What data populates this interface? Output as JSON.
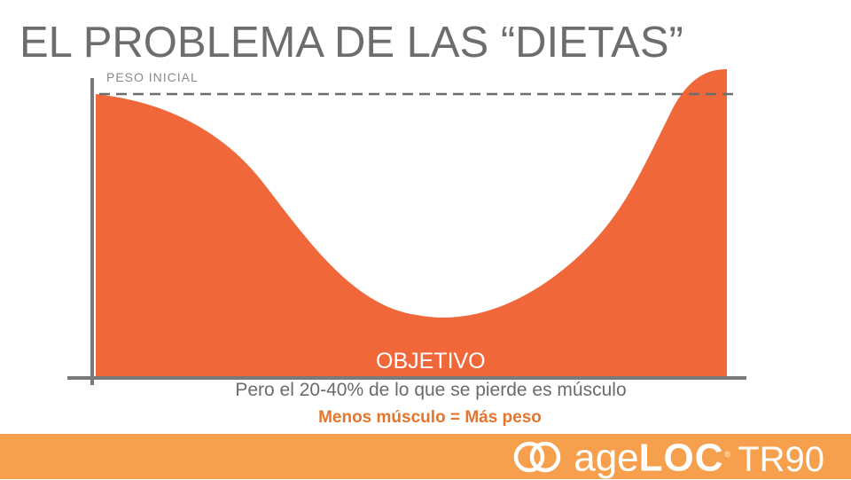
{
  "slide": {
    "title": "EL PROBLEMA DE LAS “DIETAS”"
  },
  "chart": {
    "start_label": "PESO INICIAL",
    "goal_label": "OBJETIVO",
    "fill_color": "#f0673a",
    "axis_color": "#7a7a7a",
    "dashed_line_color": "#6d6d6d"
  },
  "captions": {
    "muscle_note": "Pero el 20-40% de lo que se pierde es músculo",
    "less_muscle": "Menos músculo =",
    "more_weight": "Más peso"
  },
  "footer": {
    "bar_color": "#f6a04d",
    "brand_prefix": "age",
    "brand_mark": "LOC",
    "registered": "®",
    "product": "TR90"
  }
}
